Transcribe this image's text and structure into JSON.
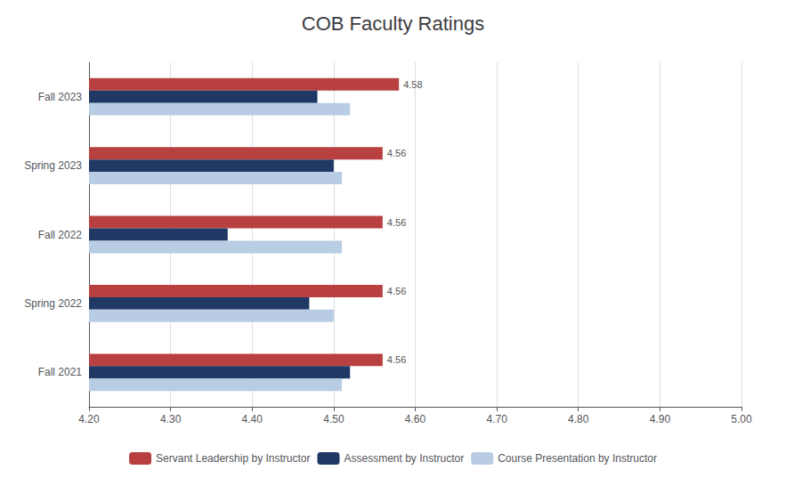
{
  "chart_data": {
    "type": "bar",
    "orientation": "horizontal",
    "title": "COB Faculty Ratings",
    "categories": [
      "Fall 2021",
      "Spring 2022",
      "Fall 2022",
      "Spring 2023",
      "Fall 2023"
    ],
    "series": [
      {
        "name": "Servant Leadership by Instructor",
        "color": "#b94040",
        "values": [
          4.56,
          4.56,
          4.56,
          4.56,
          4.58
        ],
        "data_labels": true
      },
      {
        "name": "Assessment by Instructor",
        "color": "#1f3864",
        "values": [
          4.52,
          4.47,
          4.37,
          4.5,
          4.48
        ]
      },
      {
        "name": "Course Presentation by Instructor",
        "color": "#b8cce4",
        "values": [
          4.51,
          4.5,
          4.51,
          4.51,
          4.52
        ]
      }
    ],
    "xlim": [
      4.2,
      5.0
    ],
    "xticks": [
      {
        "value": 4.2,
        "label": "4.20"
      },
      {
        "value": 4.3,
        "label": "4.30"
      },
      {
        "value": 4.4,
        "label": "4.40"
      },
      {
        "value": 4.5,
        "label": "4.50"
      },
      {
        "value": 4.6,
        "label": "4.60"
      },
      {
        "value": 4.7,
        "label": "4.70"
      },
      {
        "value": 4.8,
        "label": "4.80"
      },
      {
        "value": 4.9,
        "label": "4.90"
      },
      {
        "value": 5.0,
        "label": "5.00"
      }
    ],
    "grid": true,
    "legend": "bottom"
  }
}
